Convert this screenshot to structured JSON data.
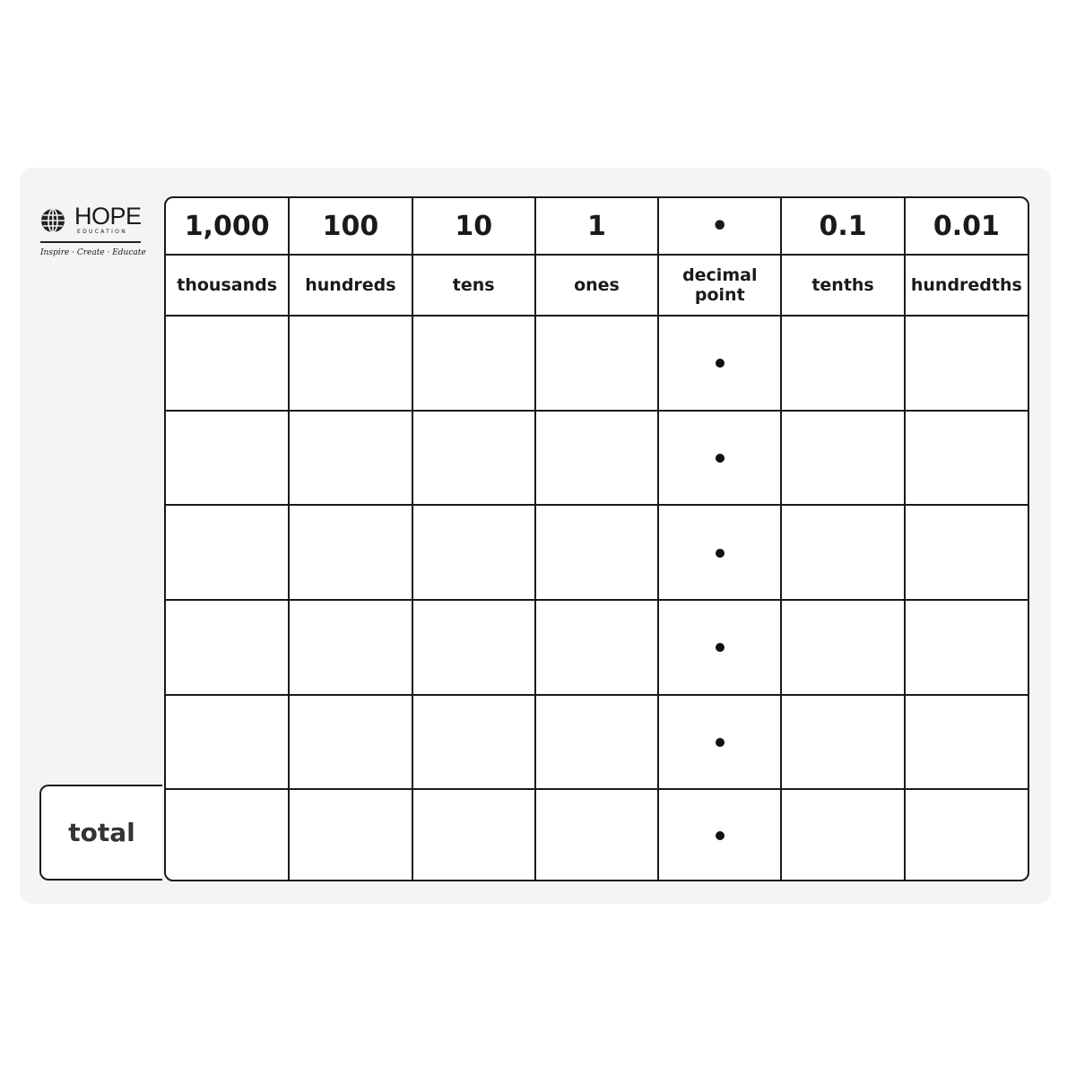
{
  "logo": {
    "brand": "HOPE",
    "sub": "EDUCATION",
    "tagline": "Inspire · Create · Educate"
  },
  "columns": [
    {
      "value": "1,000",
      "name": "thousands"
    },
    {
      "value": "100",
      "name": "hundreds"
    },
    {
      "value": "10",
      "name": "tens"
    },
    {
      "value": "1",
      "name": "ones"
    },
    {
      "value": "•",
      "name": "decimal point"
    },
    {
      "value": "0.1",
      "name": "tenths"
    },
    {
      "value": "0.01",
      "name": "hundredths"
    }
  ],
  "blank_rows": 6,
  "total_label": "total"
}
